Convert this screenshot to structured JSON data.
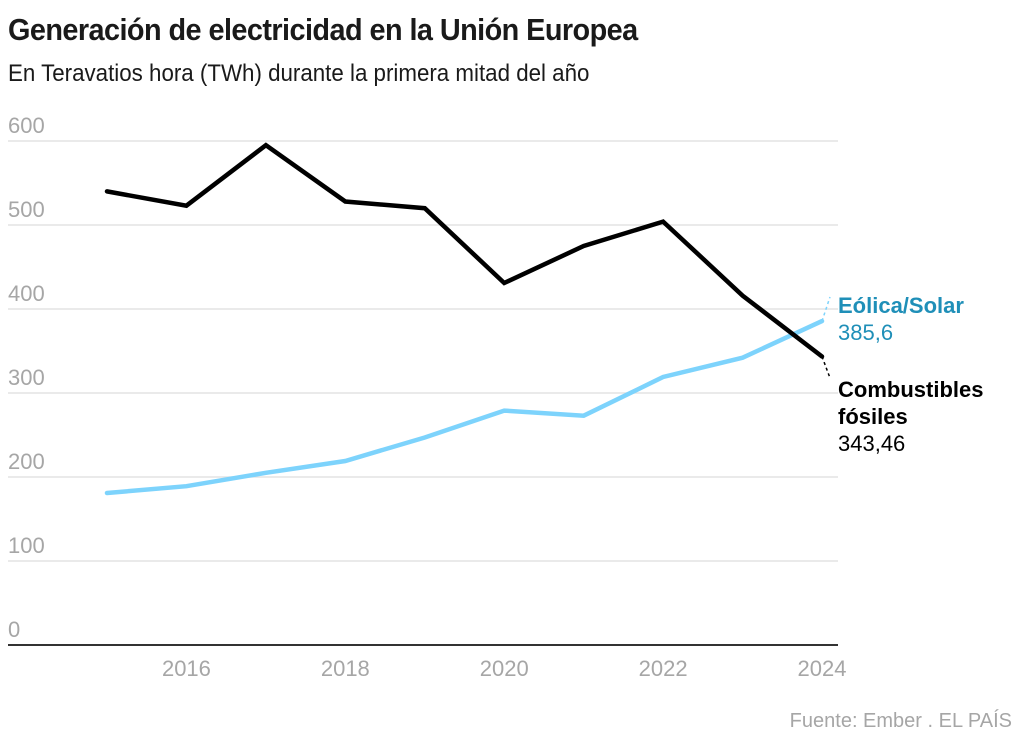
{
  "header": {
    "title": "Generación de electricidad en la Unión Europea",
    "subtitle": "En Teravatios hora (TWh) durante la primera mitad del año"
  },
  "footer": {
    "source": "Fuente: Ember . EL PAÍS"
  },
  "colors": {
    "fossil": "#000000",
    "renewables_line": "#7dd3fc",
    "renewables_label": "#1f8fb8",
    "grid": "#e3e3e3",
    "axis": "#333333",
    "tick_text": "#a6a6a6"
  },
  "chart_data": {
    "type": "line",
    "title": "Generación de electricidad en la Unión Europea",
    "subtitle": "En Teravatios hora (TWh) durante la primera mitad del año",
    "xlabel": "",
    "ylabel": "",
    "x": [
      2015,
      2016,
      2017,
      2018,
      2019,
      2020,
      2021,
      2022,
      2023,
      2024
    ],
    "xlim": [
      2014.0,
      2024.2
    ],
    "ylim": [
      0,
      600
    ],
    "yticks": [
      0,
      100,
      200,
      300,
      400,
      500,
      600
    ],
    "ytick_labels": [
      "0",
      "100",
      "200",
      "300",
      "400",
      "500",
      "600"
    ],
    "xticks": [
      2016,
      2018,
      2020,
      2022,
      2024
    ],
    "xtick_labels": [
      "2016",
      "2018",
      "2020",
      "2022",
      "2024"
    ],
    "grid": true,
    "legend": "direct-labels-right",
    "series": [
      {
        "key": "fossil",
        "name": "Combustibles fósiles",
        "label_lines": [
          "Combustibles",
          "fósiles"
        ],
        "last_value_label": "343,46",
        "values": [
          540,
          523,
          595,
          528,
          520,
          431,
          475,
          504,
          416,
          343.46
        ]
      },
      {
        "key": "renewables",
        "name": "Eólica/Solar",
        "label_lines": [
          "Eólica/Solar"
        ],
        "last_value_label": "385,6",
        "values": [
          181,
          189,
          205,
          219,
          247,
          279,
          273,
          319,
          342,
          385.6
        ]
      }
    ]
  }
}
